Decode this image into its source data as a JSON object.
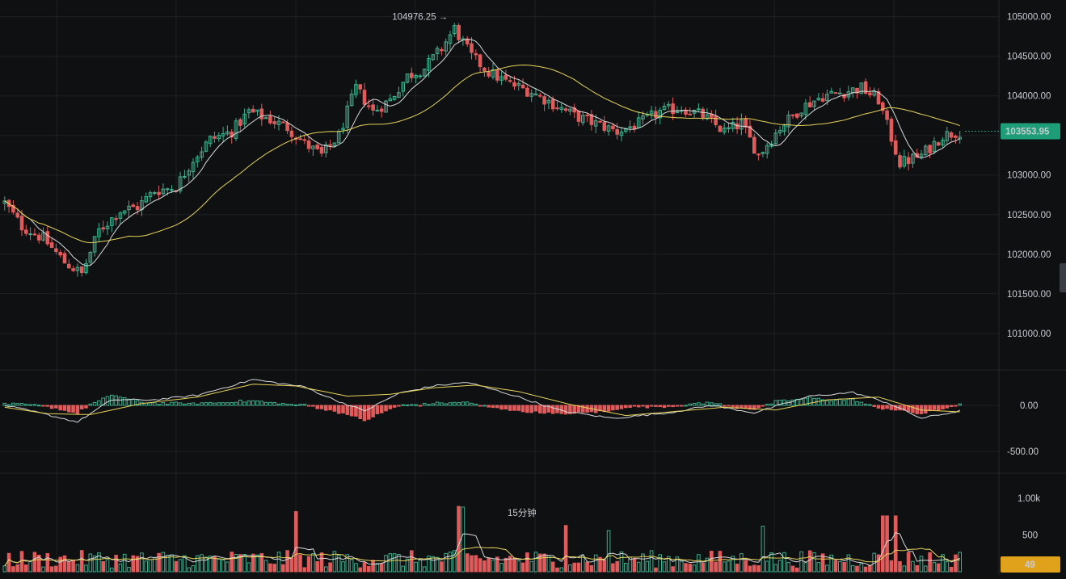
{
  "colors": {
    "up": "#3fae8c",
    "down": "#e05b5b",
    "ma_fast": "#d9d9d9",
    "ma_slow": "#e6d35a",
    "grid": "#1e2024",
    "bg": "#0f1012",
    "price_tag": "#1e9e78",
    "volume_tag": "#e0a21b",
    "interval_label": "#ff4a3d"
  },
  "interval_label": "15分钟",
  "price_axis": {
    "ticks": [
      "105000.00",
      "104500.00",
      "104000.00",
      "103500.00",
      "103000.00",
      "102500.00",
      "102000.00",
      "101500.00",
      "101000.00"
    ],
    "range": [
      100600,
      105150
    ]
  },
  "macd_axis": {
    "ticks": [
      "0.00",
      "-500.00"
    ],
    "range": [
      -700,
      350
    ]
  },
  "volume_axis": {
    "ticks": [
      "1.00k",
      "500"
    ],
    "range": [
      0,
      1100
    ]
  },
  "current_price": "103553.95",
  "current_volume": "49",
  "high_marker": "104976.25 →",
  "chart_data": {
    "type": "candlestick",
    "price_anchors": [
      [
        0,
        102650
      ],
      [
        4,
        102350
      ],
      [
        9,
        102200
      ],
      [
        14,
        101900
      ],
      [
        18,
        101750
      ],
      [
        22,
        102300
      ],
      [
        27,
        102550
      ],
      [
        31,
        102600
      ],
      [
        35,
        102800
      ],
      [
        40,
        102850
      ],
      [
        44,
        103200
      ],
      [
        48,
        103450
      ],
      [
        53,
        103550
      ],
      [
        57,
        103800
      ],
      [
        62,
        103700
      ],
      [
        66,
        103600
      ],
      [
        70,
        103400
      ],
      [
        74,
        103250
      ],
      [
        78,
        103500
      ],
      [
        82,
        104100
      ],
      [
        86,
        103800
      ],
      [
        90,
        103950
      ],
      [
        94,
        104250
      ],
      [
        98,
        104350
      ],
      [
        102,
        104600
      ],
      [
        105,
        104850
      ],
      [
        109,
        104500
      ],
      [
        113,
        104300
      ],
      [
        118,
        104150
      ],
      [
        123,
        104050
      ],
      [
        128,
        103900
      ],
      [
        133,
        103750
      ],
      [
        138,
        103650
      ],
      [
        143,
        103550
      ],
      [
        148,
        103650
      ],
      [
        153,
        103800
      ],
      [
        158,
        103850
      ],
      [
        163,
        103750
      ],
      [
        168,
        103550
      ],
      [
        172,
        103650
      ],
      [
        176,
        103250
      ],
      [
        181,
        103600
      ],
      [
        186,
        103850
      ],
      [
        191,
        104000
      ],
      [
        196,
        104050
      ],
      [
        200,
        104100
      ],
      [
        204,
        103950
      ],
      [
        209,
        103150
      ],
      [
        214,
        103250
      ],
      [
        219,
        103500
      ],
      [
        223,
        103550
      ]
    ],
    "macd_anchors": [
      [
        0,
        0
      ],
      [
        8,
        -80
      ],
      [
        17,
        -180
      ],
      [
        25,
        60
      ],
      [
        35,
        60
      ],
      [
        45,
        110
      ],
      [
        58,
        280
      ],
      [
        70,
        200
      ],
      [
        77,
        60
      ],
      [
        84,
        -60
      ],
      [
        92,
        130
      ],
      [
        100,
        210
      ],
      [
        108,
        250
      ],
      [
        118,
        120
      ],
      [
        130,
        -60
      ],
      [
        142,
        -140
      ],
      [
        155,
        -80
      ],
      [
        165,
        0
      ],
      [
        175,
        -80
      ],
      [
        188,
        100
      ],
      [
        198,
        140
      ],
      [
        206,
        30
      ],
      [
        214,
        -140
      ],
      [
        223,
        -60
      ]
    ],
    "signal_anchors": [
      [
        0,
        -20
      ],
      [
        10,
        -90
      ],
      [
        20,
        -100
      ],
      [
        32,
        20
      ],
      [
        45,
        90
      ],
      [
        58,
        230
      ],
      [
        68,
        210
      ],
      [
        80,
        100
      ],
      [
        90,
        120
      ],
      [
        100,
        190
      ],
      [
        110,
        220
      ],
      [
        120,
        150
      ],
      [
        132,
        10
      ],
      [
        145,
        -110
      ],
      [
        158,
        -60
      ],
      [
        168,
        -20
      ],
      [
        180,
        -50
      ],
      [
        192,
        60
      ],
      [
        204,
        90
      ],
      [
        214,
        -50
      ],
      [
        223,
        -70
      ]
    ],
    "volume_baseline": 200,
    "volume_spikes": [
      [
        68,
        820
      ],
      [
        106,
        890
      ],
      [
        107,
        880
      ],
      [
        131,
        630
      ],
      [
        141,
        560
      ],
      [
        177,
        620
      ],
      [
        205,
        760
      ],
      [
        206,
        760
      ],
      [
        208,
        760
      ]
    ],
    "candle_count": 224,
    "series": [
      {
        "name": ""
      },
      {
        "name": ""
      }
    ],
    "title": "",
    "xlabel": "",
    "ylabel": ""
  }
}
